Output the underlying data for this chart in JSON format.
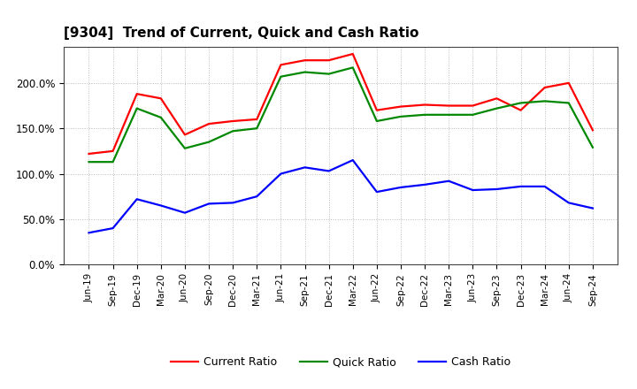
{
  "title": "[9304]  Trend of Current, Quick and Cash Ratio",
  "x_labels": [
    "Jun-19",
    "Sep-19",
    "Dec-19",
    "Mar-20",
    "Jun-20",
    "Sep-20",
    "Dec-20",
    "Mar-21",
    "Jun-21",
    "Sep-21",
    "Dec-21",
    "Mar-22",
    "Jun-22",
    "Sep-22",
    "Dec-22",
    "Mar-23",
    "Jun-23",
    "Sep-23",
    "Dec-23",
    "Mar-24",
    "Jun-24",
    "Sep-24"
  ],
  "current_ratio": [
    122,
    125,
    188,
    183,
    143,
    155,
    158,
    160,
    220,
    225,
    225,
    232,
    170,
    174,
    176,
    175,
    175,
    183,
    170,
    195,
    200,
    148
  ],
  "quick_ratio": [
    113,
    113,
    172,
    162,
    128,
    135,
    147,
    150,
    207,
    212,
    210,
    217,
    158,
    163,
    165,
    165,
    165,
    172,
    178,
    180,
    178,
    129
  ],
  "cash_ratio": [
    35,
    40,
    72,
    65,
    57,
    67,
    68,
    75,
    100,
    107,
    103,
    115,
    80,
    85,
    88,
    92,
    82,
    83,
    86,
    86,
    68,
    62
  ],
  "current_color": "#ff0000",
  "quick_color": "#008800",
  "cash_color": "#0000ff",
  "ylim": [
    0,
    240
  ],
  "yticks": [
    0,
    50,
    100,
    150,
    200
  ],
  "ytick_labels": [
    "0.0%",
    "50.0%",
    "100.0%",
    "150.0%",
    "200.0%"
  ],
  "background_color": "#ffffff",
  "plot_bg_color": "#ffffff",
  "grid_color": "#bbbbbb",
  "line_width": 1.6,
  "legend_entries": [
    "Current Ratio",
    "Quick Ratio",
    "Cash Ratio"
  ]
}
